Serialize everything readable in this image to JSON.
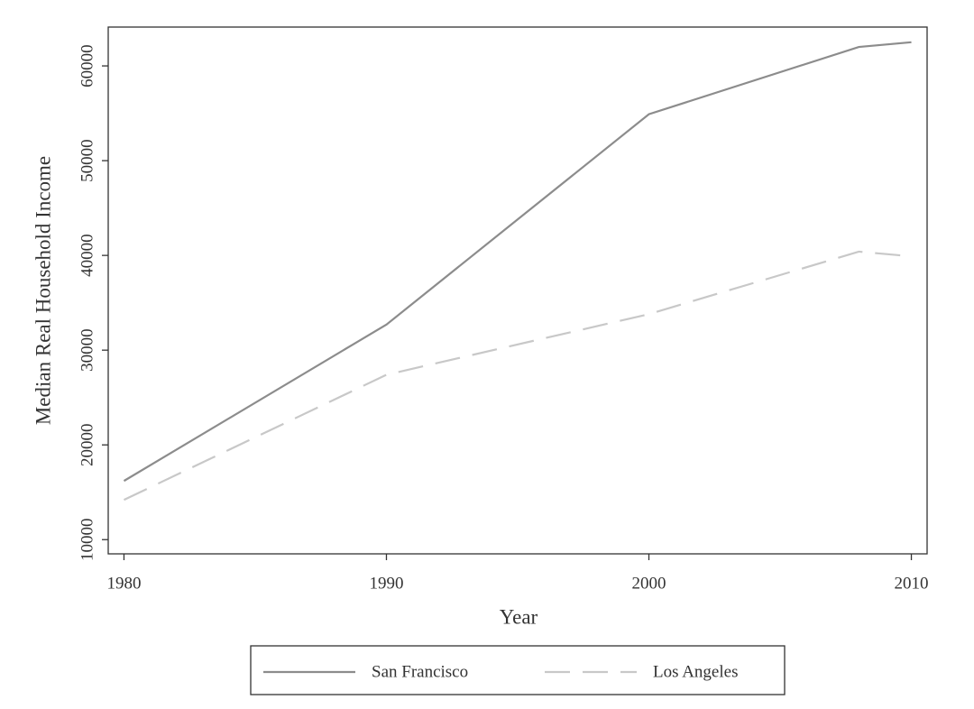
{
  "chart_data": {
    "type": "line",
    "x_label": "Year",
    "y_label": "Median Real Household Income",
    "x": [
      1980,
      1990,
      2000,
      2008,
      2010
    ],
    "series": [
      {
        "name": "San Francisco",
        "color": "#8c8c8c",
        "dash": "solid",
        "values": [
          16200,
          32700,
          54900,
          62000,
          62500
        ]
      },
      {
        "name": "Los Angeles",
        "color": "#c8c8c8",
        "dash": "dashed",
        "values": [
          14200,
          27400,
          33800,
          40400,
          39900
        ]
      }
    ],
    "xlim": [
      1979.4,
      2010.6
    ],
    "xticks": [
      1980,
      1990,
      2000,
      2010
    ],
    "ylim": [
      8500,
      64100
    ],
    "yticks": [
      10000,
      20000,
      30000,
      40000,
      50000,
      60000
    ],
    "grid": false,
    "legend": "bottom"
  }
}
